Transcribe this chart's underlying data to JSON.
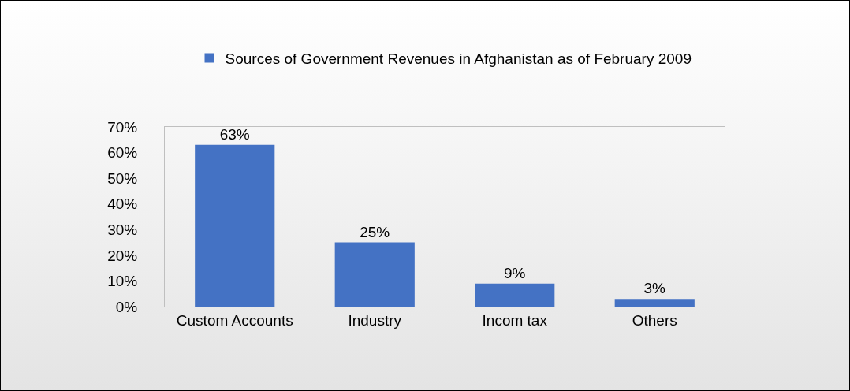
{
  "chart_data": {
    "type": "bar",
    "categories": [
      "Custom Accounts",
      "Industry",
      "Incom tax",
      "Others"
    ],
    "series": [
      {
        "name": "Sources of Government Revenues in Afghanistan as of February 2009",
        "color": "#4472c4",
        "values": [
          63,
          25,
          9,
          3
        ],
        "value_labels": [
          "63%",
          "25%",
          "9%",
          "3%"
        ]
      }
    ],
    "ylim": [
      0,
      70
    ],
    "yticks": [
      {
        "value": 0,
        "label": "0%"
      },
      {
        "value": 10,
        "label": "10%"
      },
      {
        "value": 20,
        "label": "20%"
      },
      {
        "value": 30,
        "label": "30%"
      },
      {
        "value": 40,
        "label": "40%"
      },
      {
        "value": 50,
        "label": "50%"
      },
      {
        "value": 60,
        "label": "60%"
      },
      {
        "value": 70,
        "label": "70%"
      }
    ],
    "grid": false,
    "legend": "top"
  }
}
